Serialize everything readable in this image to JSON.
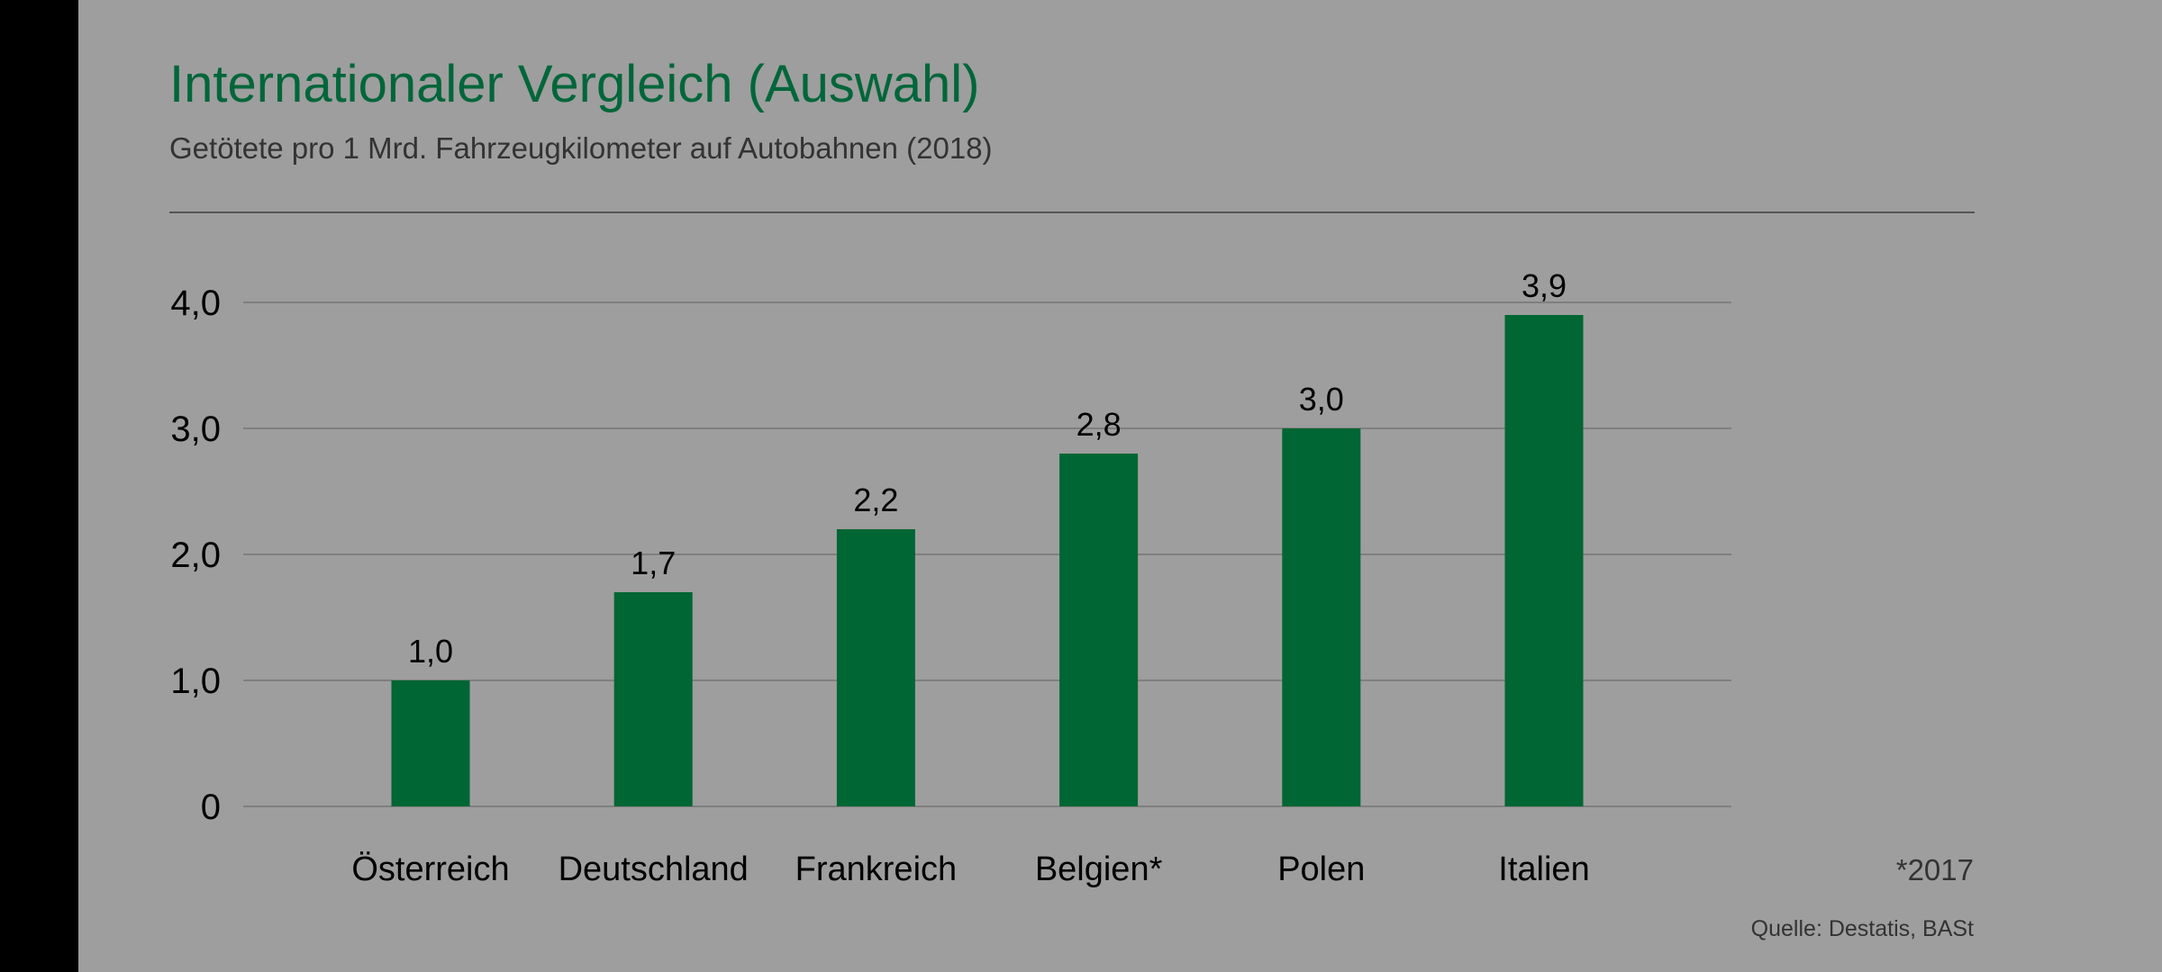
{
  "footnote": "*2017",
  "source": "Quelle: Destatis, BASt",
  "colors": {
    "bar": "#006633",
    "title": "#00663a",
    "background": "#9e9e9e"
  },
  "chart_data": {
    "type": "bar",
    "title": "Internationaler Vergleich (Auswahl)",
    "subtitle": "Getötete pro 1 Mrd. Fahrzeugkilometer auf Autobahnen (2018)",
    "categories": [
      "Österreich",
      "Deutschland",
      "Frankreich",
      "Belgien*",
      "Polen",
      "Italien"
    ],
    "values": [
      1.0,
      1.7,
      2.2,
      2.8,
      3.0,
      3.9
    ],
    "data_labels": [
      "1,0",
      "1,7",
      "2,2",
      "2,8",
      "3,0",
      "3,9"
    ],
    "yticks": [
      0,
      1,
      2,
      3,
      4
    ],
    "ytick_labels": [
      "0",
      "1,0",
      "2,0",
      "3,0",
      "4,0"
    ],
    "ylim": [
      0,
      4
    ],
    "grid": true,
    "legend": "none"
  }
}
